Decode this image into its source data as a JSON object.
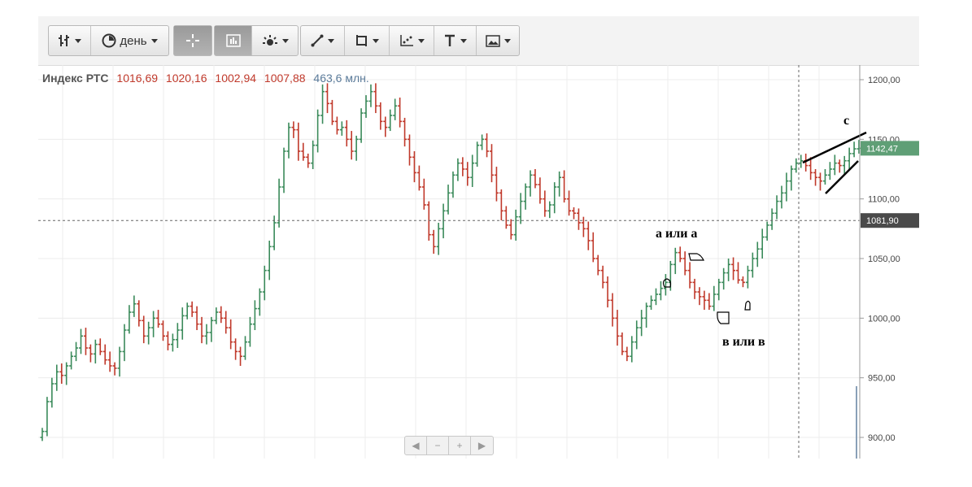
{
  "toolbar": {
    "period_label": "день",
    "icons": [
      "ohlc-bars-icon",
      "clock-icon",
      "crosshair-icon",
      "indicator-panel-icon",
      "sun-settings-icon",
      "line-draw-icon",
      "rectangle-draw-icon",
      "scatter-icon",
      "text-tool-icon",
      "image-icon"
    ]
  },
  "legend": {
    "name": "Индекс РТС",
    "open": "1016,69",
    "high": "1020,16",
    "low": "1002,94",
    "close": "1007,88",
    "volume": "463,6 млн."
  },
  "price_tags": {
    "last": "1142,47",
    "cursor": "1081,90"
  },
  "annotations": {
    "a": "а или а",
    "b": "в или в",
    "c": "c"
  },
  "nav": {
    "left": "◀",
    "zoom_out": "−",
    "zoom_in": "+",
    "right": "▶"
  },
  "colors": {
    "up": "#3a8a5a",
    "down": "#c0392b",
    "last_tag": "#5f9f76",
    "cursor_tag": "#4a4a4a"
  },
  "chart_data": {
    "type": "ohlc",
    "title": "Индекс РТС",
    "interval": "день",
    "ylim": [
      880,
      1210
    ],
    "y_ticks": [
      900,
      950,
      1000,
      1050,
      1100,
      1150,
      1200
    ],
    "y_tick_labels": [
      "900,00",
      "950,00",
      "1000,00",
      "1050,00",
      "1100,00",
      "1150,00",
      "1200,00"
    ],
    "grid": true,
    "cursor_price": 1081.9,
    "last_price": 1142.47,
    "closes": [
      905,
      930,
      945,
      955,
      952,
      960,
      968,
      975,
      985,
      975,
      970,
      978,
      972,
      965,
      960,
      958,
      972,
      990,
      1005,
      1012,
      998,
      985,
      992,
      1000,
      995,
      985,
      978,
      982,
      990,
      1002,
      1010,
      1005,
      995,
      985,
      988,
      998,
      1005,
      1000,
      992,
      980,
      972,
      968,
      980,
      995,
      1008,
      1022,
      1040,
      1060,
      1080,
      1110,
      1140,
      1160,
      1158,
      1140,
      1135,
      1130,
      1145,
      1170,
      1190,
      1180,
      1165,
      1158,
      1160,
      1150,
      1140,
      1150,
      1172,
      1182,
      1190,
      1178,
      1165,
      1160,
      1170,
      1178,
      1165,
      1150,
      1135,
      1122,
      1110,
      1095,
      1070,
      1060,
      1075,
      1090,
      1105,
      1120,
      1130,
      1125,
      1118,
      1130,
      1145,
      1150,
      1140,
      1120,
      1105,
      1090,
      1078,
      1070,
      1085,
      1098,
      1110,
      1120,
      1112,
      1100,
      1090,
      1095,
      1110,
      1118,
      1100,
      1090,
      1088,
      1080,
      1075,
      1065,
      1050,
      1040,
      1030,
      1015,
      1000,
      985,
      972,
      968,
      980,
      992,
      1000,
      1010,
      1015,
      1020,
      1025,
      1030,
      1045,
      1055,
      1050,
      1040,
      1030,
      1022,
      1018,
      1015,
      1010,
      1020,
      1030,
      1038,
      1045,
      1040,
      1032,
      1030,
      1040,
      1050,
      1058,
      1068,
      1078,
      1088,
      1098,
      1105,
      1115,
      1125,
      1130,
      1132,
      1128,
      1122,
      1118,
      1115,
      1120,
      1125,
      1130,
      1128,
      1132,
      1138,
      1142,
      1142.47
    ],
    "volume_last": 463.6,
    "annotations": [
      "а или а",
      "в или в",
      "c"
    ]
  }
}
